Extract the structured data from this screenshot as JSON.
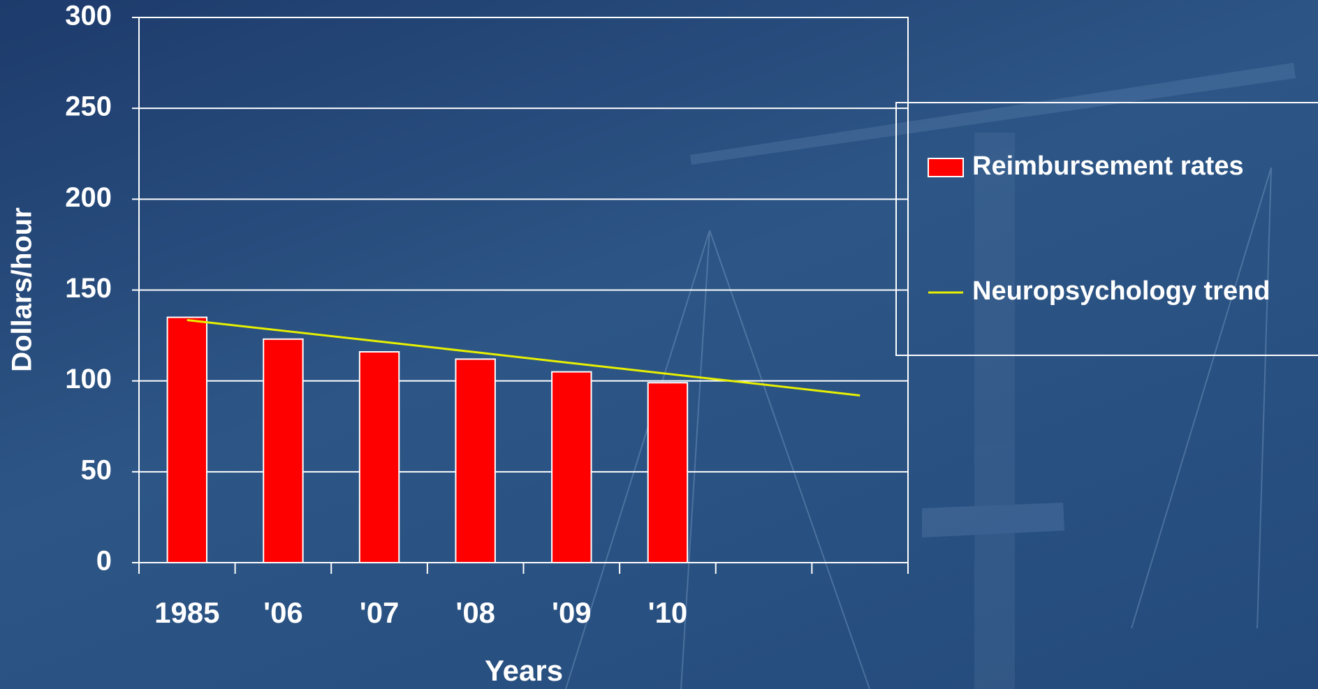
{
  "chart_data": {
    "type": "bar",
    "x_label": "Years",
    "y_label": "Dollars/hour",
    "categories": [
      "1985",
      "'06",
      "'07",
      "'08",
      "'09",
      "'10",
      null,
      null
    ],
    "series": [
      {
        "name": "Reimbursement rates",
        "color": "#ff0000",
        "values": [
          135,
          123,
          116,
          112,
          105,
          99,
          null,
          null
        ]
      },
      {
        "name": "Neuropsychology trend",
        "color": "#e8f000",
        "type": "line",
        "values": [
          133.5,
          127.6,
          121.7,
          115.8,
          109.8,
          103.9,
          98,
          92
        ]
      }
    ],
    "ylim": [
      0,
      300
    ],
    "yticks": [
      0,
      50,
      100,
      150,
      200,
      250,
      300
    ],
    "grid": true,
    "legend": "right"
  }
}
